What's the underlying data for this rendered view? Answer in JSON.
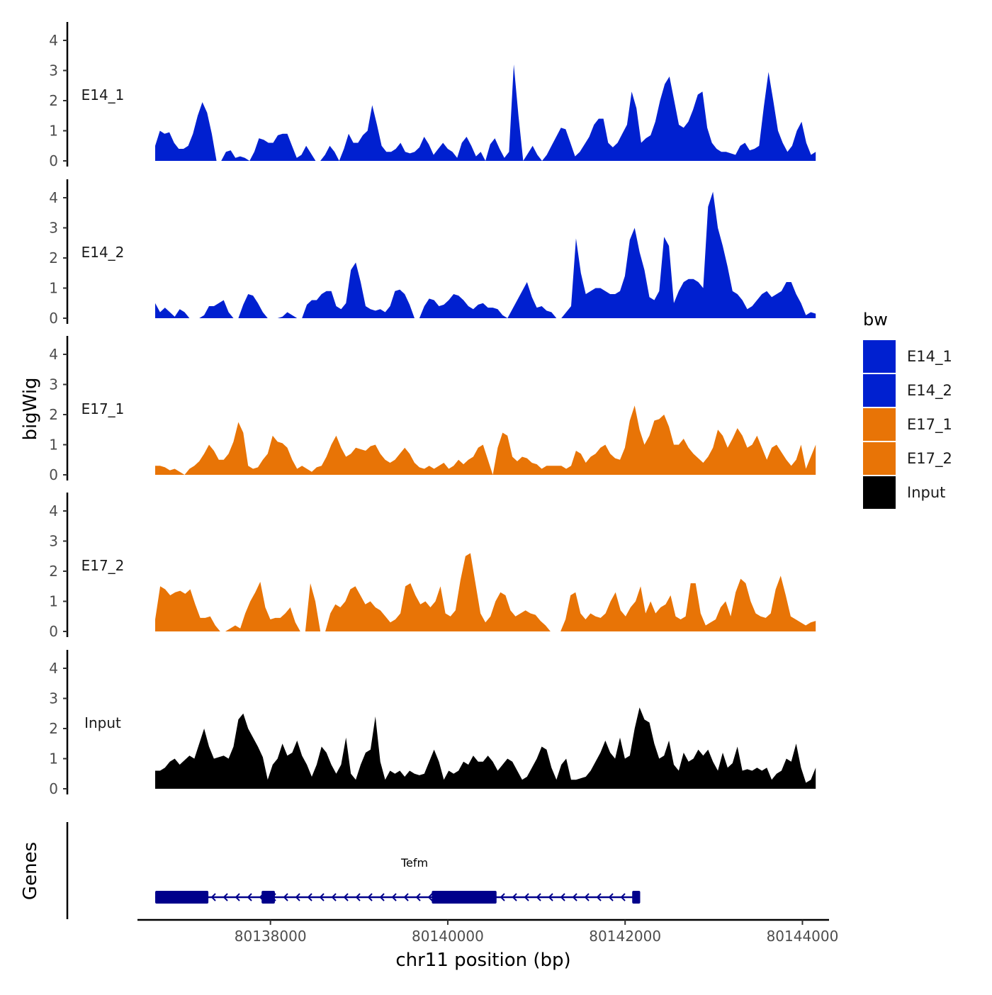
{
  "chart_data": {
    "type": "area",
    "ylabel": "bigWig",
    "xlabel": "chr11 position (bp)",
    "genes_label": "Genes",
    "xlim": [
      80136500,
      80144300
    ],
    "ylim": [
      0,
      4.6
    ],
    "y_ticks": [
      "0",
      "1",
      "2",
      "3",
      "4"
    ],
    "x_ticks": [
      {
        "value": 80138000,
        "label": "80138000"
      },
      {
        "value": 80140000,
        "label": "80140000"
      },
      {
        "value": 80142000,
        "label": "80142000"
      },
      {
        "value": 80144000,
        "label": "80144000"
      }
    ],
    "x_start": 80136700,
    "x_end": 80144150,
    "legend": {
      "title": "bw",
      "entries": [
        {
          "name": "E14_1",
          "color": "#0020D0"
        },
        {
          "name": "E14_2",
          "color": "#0020D0"
        },
        {
          "name": "E17_1",
          "color": "#E87406"
        },
        {
          "name": "E17_2",
          "color": "#E87406"
        },
        {
          "name": "Input",
          "color": "#000000"
        }
      ]
    },
    "series": [
      {
        "name": "E14_1",
        "color": "#0020D0",
        "values": [
          0.5,
          1.0,
          0.9,
          0.95,
          0.6,
          0.4,
          0.4,
          0.5,
          0.9,
          1.5,
          1.95,
          1.6,
          0.9,
          0,
          0,
          0.3,
          0.35,
          0.1,
          0.15,
          0.1,
          0,
          0.3,
          0.75,
          0.7,
          0.6,
          0.6,
          0.85,
          0.9,
          0.9,
          0.5,
          0.1,
          0.2,
          0.5,
          0.25,
          0,
          0,
          0.2,
          0.5,
          0.3,
          0,
          0.4,
          0.9,
          0.6,
          0.6,
          0.85,
          1.0,
          1.85,
          1.2,
          0.5,
          0.3,
          0.3,
          0.4,
          0.6,
          0.3,
          0.25,
          0.3,
          0.45,
          0.8,
          0.55,
          0.2,
          0.4,
          0.6,
          0.4,
          0.3,
          0.1,
          0.6,
          0.8,
          0.5,
          0.15,
          0.3,
          0,
          0.55,
          0.75,
          0.4,
          0.1,
          0.3,
          3.2,
          1.5,
          0,
          0.25,
          0.5,
          0.2,
          0,
          0.2,
          0.5,
          0.8,
          1.1,
          1.05,
          0.6,
          0.15,
          0.3,
          0.55,
          0.8,
          1.2,
          1.4,
          1.4,
          0.6,
          0.45,
          0.6,
          0.9,
          1.2,
          2.3,
          1.75,
          0.6,
          0.75,
          0.85,
          1.3,
          2.0,
          2.55,
          2.8,
          2.0,
          1.2,
          1.1,
          1.3,
          1.7,
          2.2,
          2.3,
          1.1,
          0.6,
          0.4,
          0.3,
          0.3,
          0.25,
          0.2,
          0.5,
          0.6,
          0.35,
          0.4,
          0.5,
          1.8,
          2.95,
          2.0,
          1.0,
          0.6,
          0.3,
          0.5,
          1.0,
          1.3,
          0.6,
          0.2,
          0.3
        ],
        "label": "E14_1"
      },
      {
        "name": "E14_2",
        "color": "#0020D0",
        "values": [
          0.5,
          0.2,
          0.35,
          0.2,
          0.05,
          0.3,
          0.2,
          0,
          0,
          0,
          0.1,
          0.4,
          0.4,
          0.5,
          0.6,
          0.2,
          0,
          0,
          0.45,
          0.8,
          0.75,
          0.5,
          0.2,
          0,
          0,
          0,
          0.05,
          0.2,
          0.1,
          0,
          0,
          0.45,
          0.6,
          0.6,
          0.8,
          0.9,
          0.9,
          0.4,
          0.3,
          0.5,
          1.6,
          1.85,
          1.2,
          0.4,
          0.3,
          0.25,
          0.3,
          0.2,
          0.4,
          0.9,
          0.95,
          0.8,
          0.45,
          0,
          0,
          0.4,
          0.65,
          0.6,
          0.4,
          0.45,
          0.6,
          0.8,
          0.75,
          0.6,
          0.4,
          0.3,
          0.45,
          0.5,
          0.35,
          0.35,
          0.3,
          0.1,
          0,
          0.3,
          0.6,
          0.9,
          1.2,
          0.7,
          0.35,
          0.4,
          0.25,
          0.2,
          0,
          0,
          0.2,
          0.4,
          2.65,
          1.5,
          0.8,
          0.9,
          1.0,
          1.0,
          0.9,
          0.8,
          0.8,
          0.9,
          1.4,
          2.6,
          3.0,
          2.2,
          1.6,
          0.7,
          0.6,
          0.9,
          2.7,
          2.4,
          0.5,
          0.9,
          1.2,
          1.3,
          1.3,
          1.2,
          1.0,
          3.7,
          4.2,
          3.0,
          2.4,
          1.7,
          0.9,
          0.8,
          0.6,
          0.3,
          0.4,
          0.6,
          0.8,
          0.9,
          0.7,
          0.8,
          0.9,
          1.2,
          1.2,
          0.8,
          0.5,
          0.1,
          0.2,
          0.15
        ],
        "label": "E14_2"
      },
      {
        "name": "E17_1",
        "color": "#E87406",
        "values": [
          0.3,
          0.3,
          0.25,
          0.15,
          0.2,
          0.1,
          0,
          0.2,
          0.3,
          0.45,
          0.7,
          1.0,
          0.8,
          0.5,
          0.5,
          0.7,
          1.1,
          1.75,
          1.4,
          0.3,
          0.2,
          0.25,
          0.5,
          0.7,
          1.3,
          1.1,
          1.05,
          0.9,
          0.5,
          0.2,
          0.3,
          0.2,
          0.1,
          0.25,
          0.3,
          0.6,
          1.0,
          1.3,
          0.9,
          0.6,
          0.7,
          0.9,
          0.85,
          0.8,
          0.95,
          1.0,
          0.7,
          0.5,
          0.4,
          0.5,
          0.7,
          0.9,
          0.7,
          0.4,
          0.25,
          0.2,
          0.3,
          0.2,
          0.3,
          0.4,
          0.2,
          0.3,
          0.5,
          0.35,
          0.5,
          0.6,
          0.9,
          1.0,
          0.5,
          0,
          0.9,
          1.4,
          1.3,
          0.6,
          0.45,
          0.6,
          0.55,
          0.4,
          0.35,
          0.2,
          0.3,
          0.3,
          0.3,
          0.3,
          0.2,
          0.3,
          0.8,
          0.7,
          0.4,
          0.6,
          0.7,
          0.9,
          1.0,
          0.7,
          0.55,
          0.5,
          0.9,
          1.8,
          2.3,
          1.5,
          1.0,
          1.3,
          1.8,
          1.85,
          2.0,
          1.6,
          1.0,
          1.0,
          1.2,
          0.9,
          0.7,
          0.55,
          0.4,
          0.6,
          0.9,
          1.5,
          1.3,
          0.9,
          1.2,
          1.55,
          1.3,
          0.9,
          1.0,
          1.3,
          0.9,
          0.5,
          0.9,
          1.0,
          0.75,
          0.5,
          0.3,
          0.5,
          1.0,
          0.2,
          0.6,
          1.0
        ],
        "label": "E17_1"
      },
      {
        "name": "E17_2",
        "color": "#E87406",
        "values": [
          0.4,
          1.5,
          1.4,
          1.2,
          1.3,
          1.35,
          1.25,
          1.4,
          0.9,
          0.45,
          0.45,
          0.5,
          0.2,
          0,
          0,
          0.1,
          0.2,
          0.1,
          0.6,
          1.0,
          1.3,
          1.65,
          0.8,
          0.4,
          0.45,
          0.45,
          0.6,
          0.8,
          0.3,
          0,
          0,
          1.6,
          1.0,
          0,
          0,
          0.6,
          0.9,
          0.8,
          1.0,
          1.4,
          1.5,
          1.2,
          0.9,
          1.0,
          0.8,
          0.7,
          0.5,
          0.3,
          0.4,
          0.6,
          1.5,
          1.6,
          1.2,
          0.9,
          1.0,
          0.8,
          1.0,
          1.5,
          0.6,
          0.5,
          0.7,
          1.7,
          2.5,
          2.6,
          1.6,
          0.6,
          0.3,
          0.5,
          1.0,
          1.3,
          1.2,
          0.7,
          0.5,
          0.6,
          0.7,
          0.6,
          0.55,
          0.35,
          0.2,
          0,
          0,
          0,
          0.4,
          1.2,
          1.3,
          0.6,
          0.4,
          0.6,
          0.5,
          0.45,
          0.6,
          1.0,
          1.3,
          0.7,
          0.5,
          0.8,
          1.0,
          1.5,
          0.6,
          1.0,
          0.6,
          0.8,
          0.9,
          1.2,
          0.5,
          0.4,
          0.5,
          1.6,
          1.6,
          0.6,
          0.2,
          0.3,
          0.4,
          0.8,
          1.0,
          0.5,
          1.3,
          1.75,
          1.6,
          1.0,
          0.6,
          0.5,
          0.45,
          0.6,
          1.4,
          1.85,
          1.2,
          0.5,
          0.4,
          0.3,
          0.2,
          0.3,
          0.35
        ],
        "label": "E17_2"
      },
      {
        "name": "Input",
        "color": "#000000",
        "values": [
          0.6,
          0.6,
          0.7,
          0.9,
          1.0,
          0.8,
          0.95,
          1.1,
          1.0,
          1.5,
          2.0,
          1.4,
          1.0,
          1.05,
          1.1,
          1.0,
          1.4,
          2.3,
          2.5,
          2.0,
          1.7,
          1.4,
          1.05,
          0.3,
          0.8,
          1.0,
          1.5,
          1.1,
          1.2,
          1.6,
          1.1,
          0.8,
          0.4,
          0.8,
          1.4,
          1.2,
          0.8,
          0.5,
          0.8,
          1.7,
          0.5,
          0.3,
          0.8,
          1.2,
          1.3,
          2.4,
          0.9,
          0.3,
          0.6,
          0.5,
          0.6,
          0.4,
          0.6,
          0.5,
          0.45,
          0.5,
          0.9,
          1.3,
          0.9,
          0.3,
          0.6,
          0.5,
          0.6,
          0.9,
          0.8,
          1.1,
          0.9,
          0.9,
          1.1,
          0.9,
          0.6,
          0.8,
          1.0,
          0.9,
          0.6,
          0.3,
          0.4,
          0.7,
          1.0,
          1.4,
          1.3,
          0.7,
          0.3,
          0.8,
          1.0,
          0.3,
          0.3,
          0.35,
          0.4,
          0.6,
          0.9,
          1.2,
          1.6,
          1.2,
          1.0,
          1.7,
          1.0,
          1.1,
          2.0,
          2.7,
          2.3,
          2.2,
          1.5,
          1.0,
          1.1,
          1.6,
          0.8,
          0.6,
          1.2,
          0.9,
          1.0,
          1.3,
          1.1,
          1.3,
          0.9,
          0.6,
          1.2,
          0.7,
          0.85,
          1.4,
          0.6,
          0.65,
          0.6,
          0.7,
          0.6,
          0.7,
          0.3,
          0.5,
          0.6,
          1.0,
          0.9,
          1.5,
          0.7,
          0.2,
          0.3,
          0.7
        ],
        "label": "Input"
      }
    ],
    "gene": {
      "name": "Tefm",
      "strand": "-",
      "color": "#00008B",
      "start": 80136700,
      "end": 80142150,
      "exons": [
        {
          "start": 80136700,
          "end": 80137300,
          "thick": true
        },
        {
          "start": 80137900,
          "end": 80138050,
          "thick": true
        },
        {
          "start": 80139820,
          "end": 80140550,
          "thick": true
        },
        {
          "start": 80142080,
          "end": 80142170,
          "thick": true
        }
      ]
    }
  }
}
